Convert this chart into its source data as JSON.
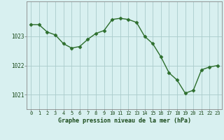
{
  "hours": [
    0,
    1,
    2,
    3,
    4,
    5,
    6,
    7,
    8,
    9,
    10,
    11,
    12,
    13,
    14,
    15,
    16,
    17,
    18,
    19,
    20,
    21,
    22,
    23
  ],
  "pressure": [
    1023.4,
    1023.4,
    1023.15,
    1023.05,
    1022.75,
    1022.6,
    1022.65,
    1022.9,
    1023.1,
    1023.2,
    1023.58,
    1023.62,
    1023.58,
    1023.48,
    1023.0,
    1022.75,
    1022.3,
    1021.75,
    1021.5,
    1021.05,
    1021.15,
    1021.85,
    1021.95,
    1022.0
  ],
  "line_color": "#2d6e2d",
  "marker": "D",
  "marker_size": 2.5,
  "bg_color": "#d8f0f0",
  "grid_color": "#aacccc",
  "axis_label_color": "#1a4a1a",
  "tick_label_color": "#1a4a1a",
  "xlabel": "Graphe pression niveau de la mer (hPa)",
  "ylim": [
    1020.5,
    1024.2
  ],
  "yticks": [
    1021,
    1022,
    1023
  ],
  "xticks": [
    0,
    1,
    2,
    3,
    4,
    5,
    6,
    7,
    8,
    9,
    10,
    11,
    12,
    13,
    14,
    15,
    16,
    17,
    18,
    19,
    20,
    21,
    22,
    23
  ],
  "linewidth": 1.0
}
